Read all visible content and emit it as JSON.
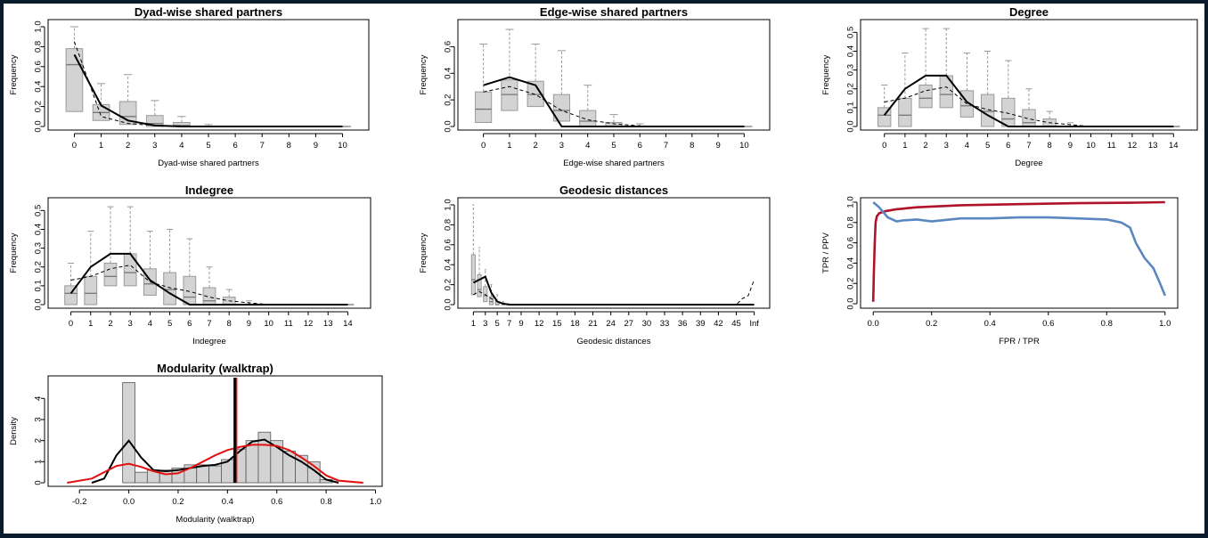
{
  "window": {
    "background": "#0b1b2e"
  },
  "colors": {
    "box_fill": "#d3d3d3",
    "box_stroke": "#9a9a9a",
    "observed": "#000000",
    "roc_red": "#b0122a",
    "roc_blue": "#5b87c0",
    "density_red": "#e31010"
  },
  "chart_data": [
    {
      "type": "boxplot",
      "title": "Dyad-wise shared partners",
      "xlabel": "Dyad-wise shared partners",
      "ylabel": "Frequency",
      "categories": [
        "0",
        "1",
        "2",
        "3",
        "4",
        "5",
        "6",
        "7",
        "8",
        "9",
        "10"
      ],
      "yticks": [
        "0.0",
        "0.2",
        "0.4",
        "0.6",
        "0.8",
        "1.0"
      ],
      "ylim": [
        0,
        1.0
      ],
      "boxes": [
        [
          0.0,
          0.15,
          0.62,
          0.78,
          1.0
        ],
        [
          0.0,
          0.06,
          0.14,
          0.22,
          0.43
        ],
        [
          0.0,
          0.02,
          0.1,
          0.25,
          0.52
        ],
        [
          0.0,
          0.0,
          0.03,
          0.11,
          0.26
        ],
        [
          0.0,
          0.0,
          0.01,
          0.04,
          0.1
        ],
        [
          0.0,
          0.0,
          0.0,
          0.0,
          0.02
        ],
        [
          0,
          0,
          0,
          0,
          0
        ],
        [
          0,
          0,
          0,
          0,
          0
        ],
        [
          0,
          0,
          0,
          0,
          0
        ],
        [
          0,
          0,
          0,
          0,
          0
        ],
        [
          0,
          0,
          0,
          0,
          0
        ]
      ],
      "observed": [
        0.72,
        0.21,
        0.06,
        0.01,
        0.0,
        0.0,
        0.0,
        0.0,
        0.0,
        0.0,
        0.0
      ],
      "simulated_mean": [
        0.85,
        0.1,
        0.03,
        0.01,
        0.0,
        0.0,
        0.0,
        0.0,
        0.0,
        0.0,
        0.0
      ]
    },
    {
      "type": "boxplot",
      "title": "Edge-wise shared partners",
      "xlabel": "Edge-wise shared partners",
      "ylabel": "Frequency",
      "categories": [
        "0",
        "1",
        "2",
        "3",
        "4",
        "5",
        "6",
        "7",
        "8",
        "9",
        "10"
      ],
      "yticks": [
        "0.0",
        "0.2",
        "0.4",
        "0.6"
      ],
      "ylim": [
        0,
        0.75
      ],
      "boxes": [
        [
          0.0,
          0.03,
          0.13,
          0.26,
          0.62
        ],
        [
          0.0,
          0.12,
          0.24,
          0.35,
          0.73
        ],
        [
          0.0,
          0.15,
          0.24,
          0.34,
          0.62
        ],
        [
          0.0,
          0.04,
          0.12,
          0.24,
          0.57
        ],
        [
          0.0,
          0.0,
          0.04,
          0.12,
          0.31
        ],
        [
          0.0,
          0.0,
          0.0,
          0.03,
          0.09
        ],
        [
          0.0,
          0.0,
          0.0,
          0.0,
          0.02
        ],
        [
          0,
          0,
          0,
          0,
          0
        ],
        [
          0,
          0,
          0,
          0,
          0
        ],
        [
          0,
          0,
          0,
          0,
          0
        ],
        [
          0,
          0,
          0,
          0,
          0
        ]
      ],
      "observed": [
        0.31,
        0.37,
        0.31,
        0.0,
        0.0,
        0.0,
        0.0,
        0.0,
        0.0,
        0.0,
        0.0
      ],
      "simulated_mean": [
        0.26,
        0.3,
        0.24,
        0.12,
        0.05,
        0.02,
        0.005,
        0.0,
        0.0,
        0.0,
        0.0
      ]
    },
    {
      "type": "boxplot",
      "title": "Degree",
      "xlabel": "Degree",
      "ylabel": "Frequency",
      "categories": [
        "0",
        "1",
        "2",
        "3",
        "4",
        "5",
        "6",
        "7",
        "8",
        "9",
        "10",
        "11",
        "12",
        "13",
        "14"
      ],
      "yticks": [
        "0.0",
        "0.1",
        "0.2",
        "0.3",
        "0.4",
        "0.5"
      ],
      "ylim": [
        0,
        0.53
      ],
      "boxes": [
        [
          0.0,
          0.0,
          0.06,
          0.1,
          0.22
        ],
        [
          0.0,
          0.0,
          0.06,
          0.15,
          0.39
        ],
        [
          0.0,
          0.1,
          0.15,
          0.22,
          0.52
        ],
        [
          0.0,
          0.1,
          0.17,
          0.27,
          0.52
        ],
        [
          0.0,
          0.05,
          0.11,
          0.19,
          0.39
        ],
        [
          0.0,
          0.0,
          0.08,
          0.17,
          0.4
        ],
        [
          0.0,
          0.0,
          0.04,
          0.15,
          0.35
        ],
        [
          0.0,
          0.0,
          0.02,
          0.09,
          0.2
        ],
        [
          0.0,
          0.0,
          0.0,
          0.04,
          0.08
        ],
        [
          0.0,
          0.0,
          0.0,
          0.0,
          0.02
        ],
        [
          0,
          0,
          0,
          0,
          0
        ],
        [
          0,
          0,
          0,
          0,
          0
        ],
        [
          0,
          0,
          0,
          0,
          0
        ],
        [
          0,
          0,
          0,
          0,
          0
        ],
        [
          0,
          0,
          0,
          0,
          0
        ]
      ],
      "observed": [
        0.06,
        0.2,
        0.27,
        0.27,
        0.13,
        0.06,
        0.0,
        0.0,
        0.0,
        0.0,
        0.0,
        0.0,
        0.0,
        0.0,
        0.0
      ],
      "simulated_mean": [
        0.13,
        0.15,
        0.19,
        0.21,
        0.12,
        0.09,
        0.07,
        0.04,
        0.02,
        0.01,
        0.0,
        0.0,
        0.0,
        0.0,
        0.0
      ]
    },
    {
      "type": "boxplot",
      "title": "Indegree",
      "xlabel": "Indegree",
      "ylabel": "Frequency",
      "categories": [
        "0",
        "1",
        "2",
        "3",
        "4",
        "5",
        "6",
        "7",
        "8",
        "9",
        "10",
        "11",
        "12",
        "13",
        "14"
      ],
      "yticks": [
        "0.0",
        "0.1",
        "0.2",
        "0.3",
        "0.4",
        "0.5"
      ],
      "ylim": [
        0,
        0.53
      ],
      "boxes": [
        [
          0.0,
          0.0,
          0.06,
          0.1,
          0.22
        ],
        [
          0.0,
          0.0,
          0.06,
          0.15,
          0.39
        ],
        [
          0.0,
          0.1,
          0.15,
          0.22,
          0.52
        ],
        [
          0.0,
          0.1,
          0.17,
          0.27,
          0.52
        ],
        [
          0.0,
          0.05,
          0.11,
          0.19,
          0.39
        ],
        [
          0.0,
          0.0,
          0.08,
          0.17,
          0.4
        ],
        [
          0.0,
          0.0,
          0.04,
          0.15,
          0.35
        ],
        [
          0.0,
          0.0,
          0.02,
          0.09,
          0.2
        ],
        [
          0.0,
          0.0,
          0.0,
          0.04,
          0.08
        ],
        [
          0.0,
          0.0,
          0.0,
          0.0,
          0.02
        ],
        [
          0,
          0,
          0,
          0,
          0
        ],
        [
          0,
          0,
          0,
          0,
          0
        ],
        [
          0,
          0,
          0,
          0,
          0
        ],
        [
          0,
          0,
          0,
          0,
          0
        ],
        [
          0,
          0,
          0,
          0,
          0
        ]
      ],
      "observed": [
        0.06,
        0.2,
        0.27,
        0.27,
        0.13,
        0.06,
        0.0,
        0.0,
        0.0,
        0.0,
        0.0,
        0.0,
        0.0,
        0.0,
        0.0
      ],
      "simulated_mean": [
        0.13,
        0.15,
        0.19,
        0.21,
        0.12,
        0.09,
        0.07,
        0.04,
        0.02,
        0.01,
        0.0,
        0.0,
        0.0,
        0.0,
        0.0
      ]
    },
    {
      "type": "boxplot",
      "title": "Geodesic distances",
      "xlabel": "Geodesic distances",
      "ylabel": "Frequency",
      "categories": [
        "1",
        "2",
        "3",
        "4",
        "5",
        "6",
        "7",
        "8",
        "9",
        "10",
        "11",
        "12",
        "13",
        "14",
        "15",
        "16",
        "17",
        "18",
        "19",
        "20",
        "21",
        "22",
        "23",
        "24",
        "25",
        "26",
        "27",
        "28",
        "29",
        "30",
        "31",
        "32",
        "33",
        "34",
        "35",
        "36",
        "37",
        "38",
        "39",
        "40",
        "41",
        "42",
        "43",
        "44",
        "45",
        "46",
        "47",
        "Inf"
      ],
      "tick_labels": [
        "1",
        "3",
        "5",
        "7",
        "9",
        "12",
        "15",
        "18",
        "21",
        "24",
        "27",
        "30",
        "33",
        "36",
        "39",
        "42",
        "45",
        "Inf"
      ],
      "yticks": [
        "0.0",
        "0.2",
        "0.4",
        "0.6",
        "0.8",
        "1.0"
      ],
      "ylim": [
        0,
        1.0
      ],
      "boxes": [
        [
          0.0,
          0.1,
          0.25,
          0.5,
          1.0
        ],
        [
          0.0,
          0.08,
          0.15,
          0.3,
          0.57
        ],
        [
          0.0,
          0.03,
          0.09,
          0.18,
          0.35
        ],
        [
          0.0,
          0.0,
          0.03,
          0.08,
          0.2
        ],
        [
          0.0,
          0.0,
          0.0,
          0.03,
          0.1
        ],
        [
          0.0,
          0.0,
          0.0,
          0.0,
          0.03
        ]
      ],
      "observed": [
        0.22,
        0.25,
        0.28,
        0.12,
        0.03,
        0.01,
        0.0,
        0.0,
        0.0,
        0.0,
        0.0,
        0.0,
        0.0,
        0.0,
        0.0,
        0.0,
        0.0,
        0.0,
        0.0,
        0.0,
        0.0,
        0.0,
        0.0,
        0.0,
        0.0,
        0.0,
        0.0,
        0.0,
        0.0,
        0.0,
        0.0,
        0.0,
        0.0,
        0.0,
        0.0,
        0.0,
        0.0,
        0.0,
        0.0,
        0.0,
        0.0,
        0.0,
        0.0,
        0.0,
        0.0,
        0.0,
        0.0,
        0.0
      ],
      "simulated_mean": [
        0.1,
        0.13,
        0.1,
        0.06,
        0.03,
        0.01,
        0.005,
        0.0,
        0.0,
        0.0,
        0.0,
        0.0,
        0.0,
        0.0,
        0.0,
        0.0,
        0.0,
        0.0,
        0.0,
        0.0,
        0.0,
        0.0,
        0.0,
        0.0,
        0.0,
        0.0,
        0.0,
        0.0,
        0.0,
        0.0,
        0.0,
        0.0,
        0.0,
        0.0,
        0.0,
        0.0,
        0.0,
        0.0,
        0.0,
        0.0,
        0.0,
        0.0,
        0.0,
        0.0,
        0.0,
        0.06,
        0.09,
        0.25
      ]
    },
    {
      "type": "line",
      "title": "",
      "xlabel": "FPR / TPR",
      "ylabel": "TPR / PPV",
      "xticks": [
        "0.0",
        "0.2",
        "0.4",
        "0.6",
        "0.8",
        "1.0"
      ],
      "yticks": [
        "0.0",
        "0.2",
        "0.4",
        "0.6",
        "0.8",
        "1.0"
      ],
      "xlim": [
        0,
        1
      ],
      "ylim": [
        0,
        1
      ],
      "series": [
        {
          "color": "#b0122a",
          "x": [
            0.0,
            0.002,
            0.005,
            0.008,
            0.012,
            0.02,
            0.04,
            0.08,
            0.15,
            0.3,
            0.5,
            0.7,
            0.9,
            1.0
          ],
          "y": [
            0.02,
            0.3,
            0.6,
            0.8,
            0.86,
            0.89,
            0.91,
            0.93,
            0.95,
            0.97,
            0.98,
            0.99,
            0.995,
            1.0
          ]
        },
        {
          "color": "#5b87c0",
          "x": [
            0.0,
            0.02,
            0.05,
            0.08,
            0.1,
            0.15,
            0.2,
            0.3,
            0.4,
            0.5,
            0.6,
            0.7,
            0.8,
            0.85,
            0.88,
            0.9,
            0.93,
            0.96,
            0.98,
            1.0
          ],
          "y": [
            1.0,
            0.95,
            0.85,
            0.81,
            0.82,
            0.83,
            0.81,
            0.84,
            0.84,
            0.85,
            0.85,
            0.84,
            0.83,
            0.8,
            0.75,
            0.6,
            0.45,
            0.35,
            0.22,
            0.08
          ]
        }
      ]
    },
    {
      "type": "histogram",
      "title": "Modularity (walktrap)",
      "xlabel": "Modularity (walktrap)",
      "ylabel": "Density",
      "xticks": [
        "-0.2",
        "0.0",
        "0.2",
        "0.4",
        "0.6",
        "0.8",
        "1.0"
      ],
      "yticks": [
        "0",
        "1",
        "2",
        "3",
        "4"
      ],
      "xlim": [
        -0.3,
        1.0
      ],
      "ylim": [
        0,
        4.9
      ],
      "bin_width": 0.05,
      "bins_start": [
        -0.025,
        0.025,
        0.075,
        0.125,
        0.175,
        0.225,
        0.275,
        0.325,
        0.375,
        0.425,
        0.475,
        0.525,
        0.575,
        0.625,
        0.675,
        0.725,
        0.775
      ],
      "heights": [
        4.75,
        0.5,
        0.6,
        0.6,
        0.7,
        0.85,
        0.85,
        0.8,
        1.1,
        1.6,
        2.0,
        2.4,
        2.0,
        1.5,
        1.3,
        1.0,
        0.15
      ],
      "observed_value": 0.43,
      "kde_black": {
        "x": [
          -0.15,
          -0.1,
          -0.05,
          0.0,
          0.05,
          0.1,
          0.15,
          0.2,
          0.25,
          0.3,
          0.35,
          0.4,
          0.45,
          0.5,
          0.55,
          0.6,
          0.65,
          0.7,
          0.75,
          0.8,
          0.85
        ],
        "y": [
          0.0,
          0.2,
          1.3,
          2.0,
          1.2,
          0.6,
          0.55,
          0.6,
          0.7,
          0.8,
          0.85,
          1.0,
          1.5,
          1.95,
          2.05,
          1.7,
          1.3,
          1.0,
          0.6,
          0.15,
          0.0
        ]
      },
      "kde_red": {
        "x": [
          -0.25,
          -0.15,
          -0.05,
          0.0,
          0.05,
          0.1,
          0.15,
          0.2,
          0.25,
          0.3,
          0.35,
          0.4,
          0.45,
          0.5,
          0.55,
          0.6,
          0.65,
          0.7,
          0.75,
          0.8,
          0.85,
          0.95
        ],
        "y": [
          0.0,
          0.2,
          0.8,
          0.9,
          0.75,
          0.55,
          0.4,
          0.45,
          0.7,
          1.0,
          1.3,
          1.55,
          1.7,
          1.8,
          1.8,
          1.75,
          1.55,
          1.2,
          0.8,
          0.35,
          0.1,
          0.0
        ]
      }
    }
  ]
}
